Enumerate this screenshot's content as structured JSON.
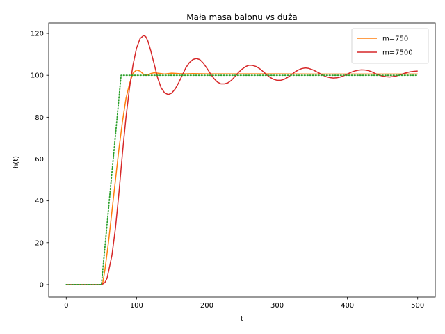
{
  "chart_data": {
    "type": "line",
    "title": "Mała masa balonu vs duża",
    "xlabel": "t",
    "ylabel": "h(t)",
    "xlim": [
      -25,
      525
    ],
    "ylim": [
      -6,
      125
    ],
    "xticks": [
      0,
      100,
      200,
      300,
      400,
      500
    ],
    "yticks": [
      0,
      20,
      40,
      60,
      80,
      100,
      120
    ],
    "grid": false,
    "legend_position": "top-right",
    "series": [
      {
        "name": "m=750",
        "color": "#ff7f0e",
        "style": "solid",
        "x": [
          0,
          50,
          52,
          55,
          60,
          65,
          70,
          75,
          80,
          85,
          90,
          95,
          100,
          105,
          110,
          115,
          120,
          125,
          130,
          140,
          150,
          160,
          170,
          180,
          200,
          250,
          300,
          350,
          400,
          450,
          500
        ],
        "y": [
          0,
          0,
          1,
          7,
          20,
          35,
          50,
          65,
          78,
          89,
          96,
          101,
          102.5,
          102,
          100.5,
          100,
          100.8,
          101.2,
          101,
          100.6,
          101,
          100.8,
          100.7,
          100.8,
          100.7,
          100.7,
          100.7,
          100.6,
          100.6,
          100.6,
          100.6
        ]
      },
      {
        "name": "m=7500",
        "color": "#d62728",
        "style": "solid",
        "x": [
          0,
          50,
          53,
          55,
          58,
          60,
          65,
          70,
          75,
          80,
          85,
          90,
          95,
          100,
          105,
          110,
          113,
          116,
          120,
          125,
          130,
          135,
          140,
          145,
          150,
          155,
          160,
          165,
          170,
          175,
          180,
          185,
          190,
          195,
          200,
          205,
          210,
          215,
          220,
          225,
          230,
          235,
          240,
          245,
          250,
          255,
          260,
          265,
          270,
          275,
          280,
          285,
          290,
          295,
          300,
          305,
          310,
          315,
          320,
          325,
          330,
          335,
          340,
          345,
          350,
          355,
          360,
          365,
          370,
          375,
          380,
          385,
          390,
          395,
          400,
          405,
          410,
          415,
          420,
          425,
          430,
          435,
          440,
          445,
          450,
          455,
          460,
          465,
          470,
          475,
          480,
          485,
          490,
          495,
          500
        ],
        "y": [
          0,
          0,
          0.5,
          1,
          3,
          6,
          14,
          27,
          44,
          63,
          80,
          94,
          105,
          113,
          117.5,
          119,
          118.5,
          116.5,
          112,
          105.5,
          98.8,
          94,
          91.6,
          90.8,
          91.5,
          93.5,
          96.5,
          100,
          103.5,
          106,
          107.5,
          108,
          107.5,
          105.8,
          103.4,
          100.8,
          98.5,
          96.8,
          95.9,
          95.9,
          96.4,
          97.6,
          99.4,
          101.3,
          102.9,
          104.1,
          104.8,
          104.7,
          104.2,
          103.2,
          101.8,
          100.3,
          99,
          98.1,
          97.6,
          97.6,
          98.1,
          99,
          100.2,
          101.5,
          102.5,
          103.2,
          103.5,
          103.3,
          102.7,
          101.9,
          101,
          100.1,
          99.3,
          98.9,
          98.7,
          98.8,
          99.2,
          99.8,
          100.6,
          101.4,
          102,
          102.4,
          102.6,
          102.5,
          102.2,
          101.6,
          100.8,
          100.1,
          99.6,
          99.3,
          99.2,
          99.4,
          99.7,
          100.2,
          100.8,
          101.3,
          101.7,
          101.9,
          102
        ]
      },
      {
        "name": "",
        "color": "#2ca02c",
        "style": "dotted",
        "x": [
          0,
          50,
          78,
          500
        ],
        "y": [
          0,
          0,
          100,
          100
        ]
      }
    ],
    "legend": [
      {
        "label": "m=750",
        "color": "#ff7f0e"
      },
      {
        "label": "m=7500",
        "color": "#d62728"
      }
    ]
  }
}
